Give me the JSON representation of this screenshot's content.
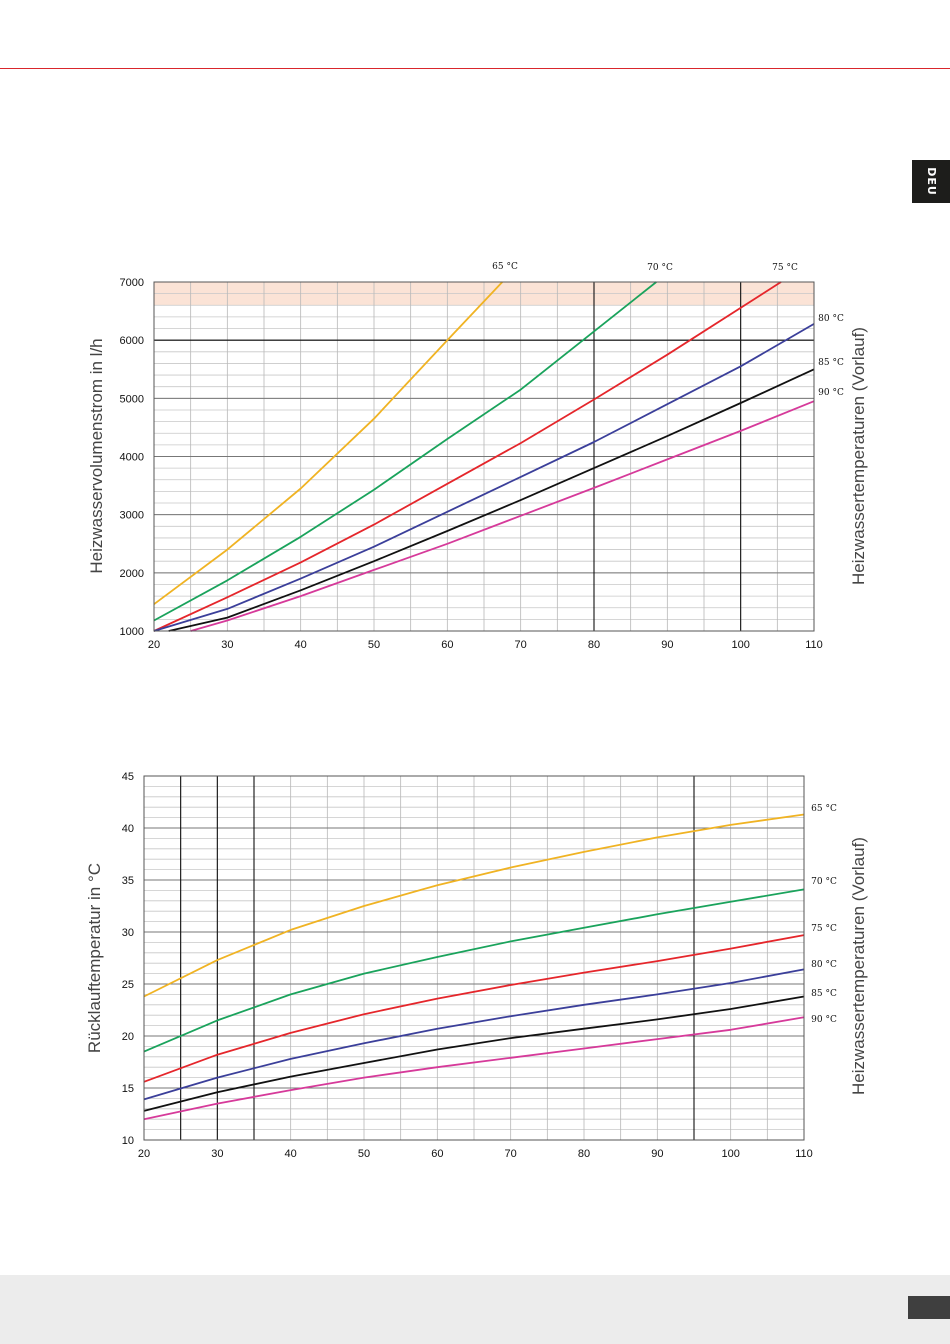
{
  "page": {
    "language_tab": "DEU"
  },
  "colors": {
    "65": "#f0b323",
    "70": "#1aa35c",
    "75": "#e5262b",
    "80": "#3b3f9a",
    "85": "#111111",
    "90": "#d63a9a",
    "highlight_band": "#fbe3d6"
  },
  "chart_data": [
    {
      "type": "line",
      "ylabel": "Heizwasservolumenstrom in l/h",
      "ylabel_right": "Heizwassertemperaturen (Vorlauf)",
      "xlim": [
        20,
        110
      ],
      "ylim": [
        1000,
        7000
      ],
      "x_ticks": [
        "20",
        "30",
        "40",
        "50",
        "60",
        "70",
        "80",
        "90",
        "100",
        "110"
      ],
      "y_ticks": [
        "1000",
        "2000",
        "3000",
        "4000",
        "5000",
        "6000",
        "7000"
      ],
      "grid": true,
      "highlight_band": [
        6600,
        7000
      ],
      "series": [
        {
          "name": "65 °C",
          "color_key": "65",
          "x": [
            20,
            30,
            40,
            50,
            60,
            67.5
          ],
          "y": [
            1460,
            2400,
            3450,
            4650,
            6000,
            7000
          ]
        },
        {
          "name": "70 °C",
          "color_key": "70",
          "x": [
            20,
            30,
            40,
            50,
            60,
            70,
            80,
            88.5
          ],
          "y": [
            1180,
            1870,
            2620,
            3430,
            4300,
            5150,
            6150,
            7000
          ]
        },
        {
          "name": "75 °C",
          "color_key": "75",
          "x": [
            20,
            30,
            40,
            50,
            60,
            70,
            80,
            90,
            105.5
          ],
          "y": [
            1000,
            1580,
            2180,
            2830,
            3530,
            4230,
            4980,
            5750,
            7000
          ]
        },
        {
          "name": "80 °C",
          "color_key": "80",
          "x": [
            20,
            30,
            40,
            50,
            60,
            70,
            80,
            90,
            100,
            110
          ],
          "y": [
            1000,
            1380,
            1900,
            2450,
            3050,
            3650,
            4250,
            4900,
            5550,
            6280
          ]
        },
        {
          "name": "85 °C",
          "color_key": "85",
          "x": [
            22,
            30,
            40,
            50,
            60,
            70,
            80,
            90,
            100,
            110
          ],
          "y": [
            1000,
            1230,
            1700,
            2200,
            2720,
            3250,
            3800,
            4350,
            4920,
            5500
          ]
        },
        {
          "name": "90 °C",
          "color_key": "90",
          "x": [
            25,
            30,
            40,
            50,
            60,
            70,
            80,
            90,
            100,
            110
          ],
          "y": [
            1000,
            1180,
            1600,
            2050,
            2500,
            2980,
            3460,
            3950,
            4440,
            4950
          ]
        }
      ]
    },
    {
      "type": "line",
      "ylabel": "Rücklauftemperatur in °C",
      "ylabel_right": "Heizwassertemperaturen (Vorlauf)",
      "xlim": [
        20,
        110
      ],
      "ylim": [
        10,
        45
      ],
      "x_ticks": [
        "20",
        "30",
        "40",
        "50",
        "60",
        "70",
        "80",
        "90",
        "100",
        "110"
      ],
      "y_ticks": [
        "10",
        "15",
        "20",
        "25",
        "30",
        "35",
        "40",
        "45"
      ],
      "grid": true,
      "series": [
        {
          "name": "65 °C",
          "color_key": "65",
          "x": [
            20,
            30,
            40,
            50,
            60,
            70,
            80,
            90,
            100,
            110
          ],
          "y": [
            23.8,
            27.3,
            30.2,
            32.5,
            34.5,
            36.2,
            37.7,
            39.1,
            40.3,
            41.3
          ]
        },
        {
          "name": "70 °C",
          "color_key": "70",
          "x": [
            20,
            30,
            40,
            50,
            60,
            70,
            80,
            90,
            100,
            110
          ],
          "y": [
            18.5,
            21.5,
            24.0,
            26.0,
            27.6,
            29.1,
            30.4,
            31.7,
            32.9,
            34.1
          ]
        },
        {
          "name": "75 °C",
          "color_key": "75",
          "x": [
            20,
            30,
            40,
            50,
            60,
            70,
            80,
            90,
            100,
            110
          ],
          "y": [
            15.6,
            18.2,
            20.3,
            22.1,
            23.6,
            24.9,
            26.1,
            27.2,
            28.4,
            29.7
          ]
        },
        {
          "name": "80 °C",
          "color_key": "80",
          "x": [
            20,
            30,
            40,
            50,
            60,
            70,
            80,
            90,
            100,
            110
          ],
          "y": [
            13.9,
            16.0,
            17.8,
            19.3,
            20.7,
            21.9,
            23.0,
            24.0,
            25.1,
            26.4
          ]
        },
        {
          "name": "85 °C",
          "color_key": "85",
          "x": [
            20,
            30,
            40,
            50,
            60,
            70,
            80,
            90,
            100,
            110
          ],
          "y": [
            12.8,
            14.6,
            16.1,
            17.4,
            18.7,
            19.8,
            20.7,
            21.6,
            22.6,
            23.8
          ]
        },
        {
          "name": "90 °C",
          "color_key": "90",
          "x": [
            20,
            30,
            40,
            50,
            60,
            70,
            80,
            90,
            100,
            110
          ],
          "y": [
            12.0,
            13.5,
            14.8,
            16.0,
            17.0,
            17.9,
            18.8,
            19.7,
            20.6,
            21.8
          ]
        }
      ]
    }
  ]
}
